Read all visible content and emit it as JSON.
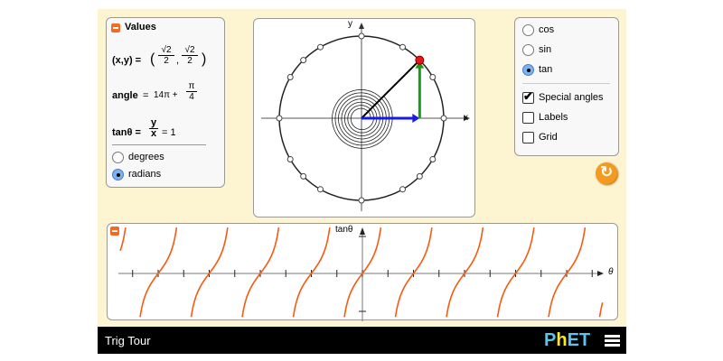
{
  "values_panel": {
    "title": "Values",
    "xy_label": "(x,y) =",
    "xy_x_num": "√2",
    "xy_x_den": "2",
    "xy_y_num": "√2",
    "xy_y_den": "2",
    "angle_label": "angle",
    "angle_value": "14π +",
    "angle_num": "π",
    "angle_den": "4",
    "tan_label": "tanθ =",
    "tan_num": "y",
    "tan_den": "x",
    "tan_value": "= 1",
    "units": [
      {
        "label": "degrees",
        "selected": false
      },
      {
        "label": "radians",
        "selected": true
      }
    ]
  },
  "controls": {
    "functions": [
      {
        "label": "cos",
        "selected": false
      },
      {
        "label": "sin",
        "selected": false
      },
      {
        "label": "tan",
        "selected": true
      }
    ],
    "checkboxes": [
      {
        "label": "Special angles",
        "checked": true
      },
      {
        "label": "Labels",
        "checked": false
      },
      {
        "label": "Grid",
        "checked": false
      }
    ]
  },
  "circle": {
    "x_axis": "x",
    "y_axis": "y",
    "colors": {
      "point": "#e8151b",
      "sin": "#1a9a1a",
      "cos": "#1a1ae8"
    }
  },
  "graph": {
    "y_axis": "tanθ",
    "x_axis": "θ",
    "curve_color": "#f55a10"
  },
  "footer": {
    "title": "Trig Tour",
    "logo": "PhET"
  }
}
